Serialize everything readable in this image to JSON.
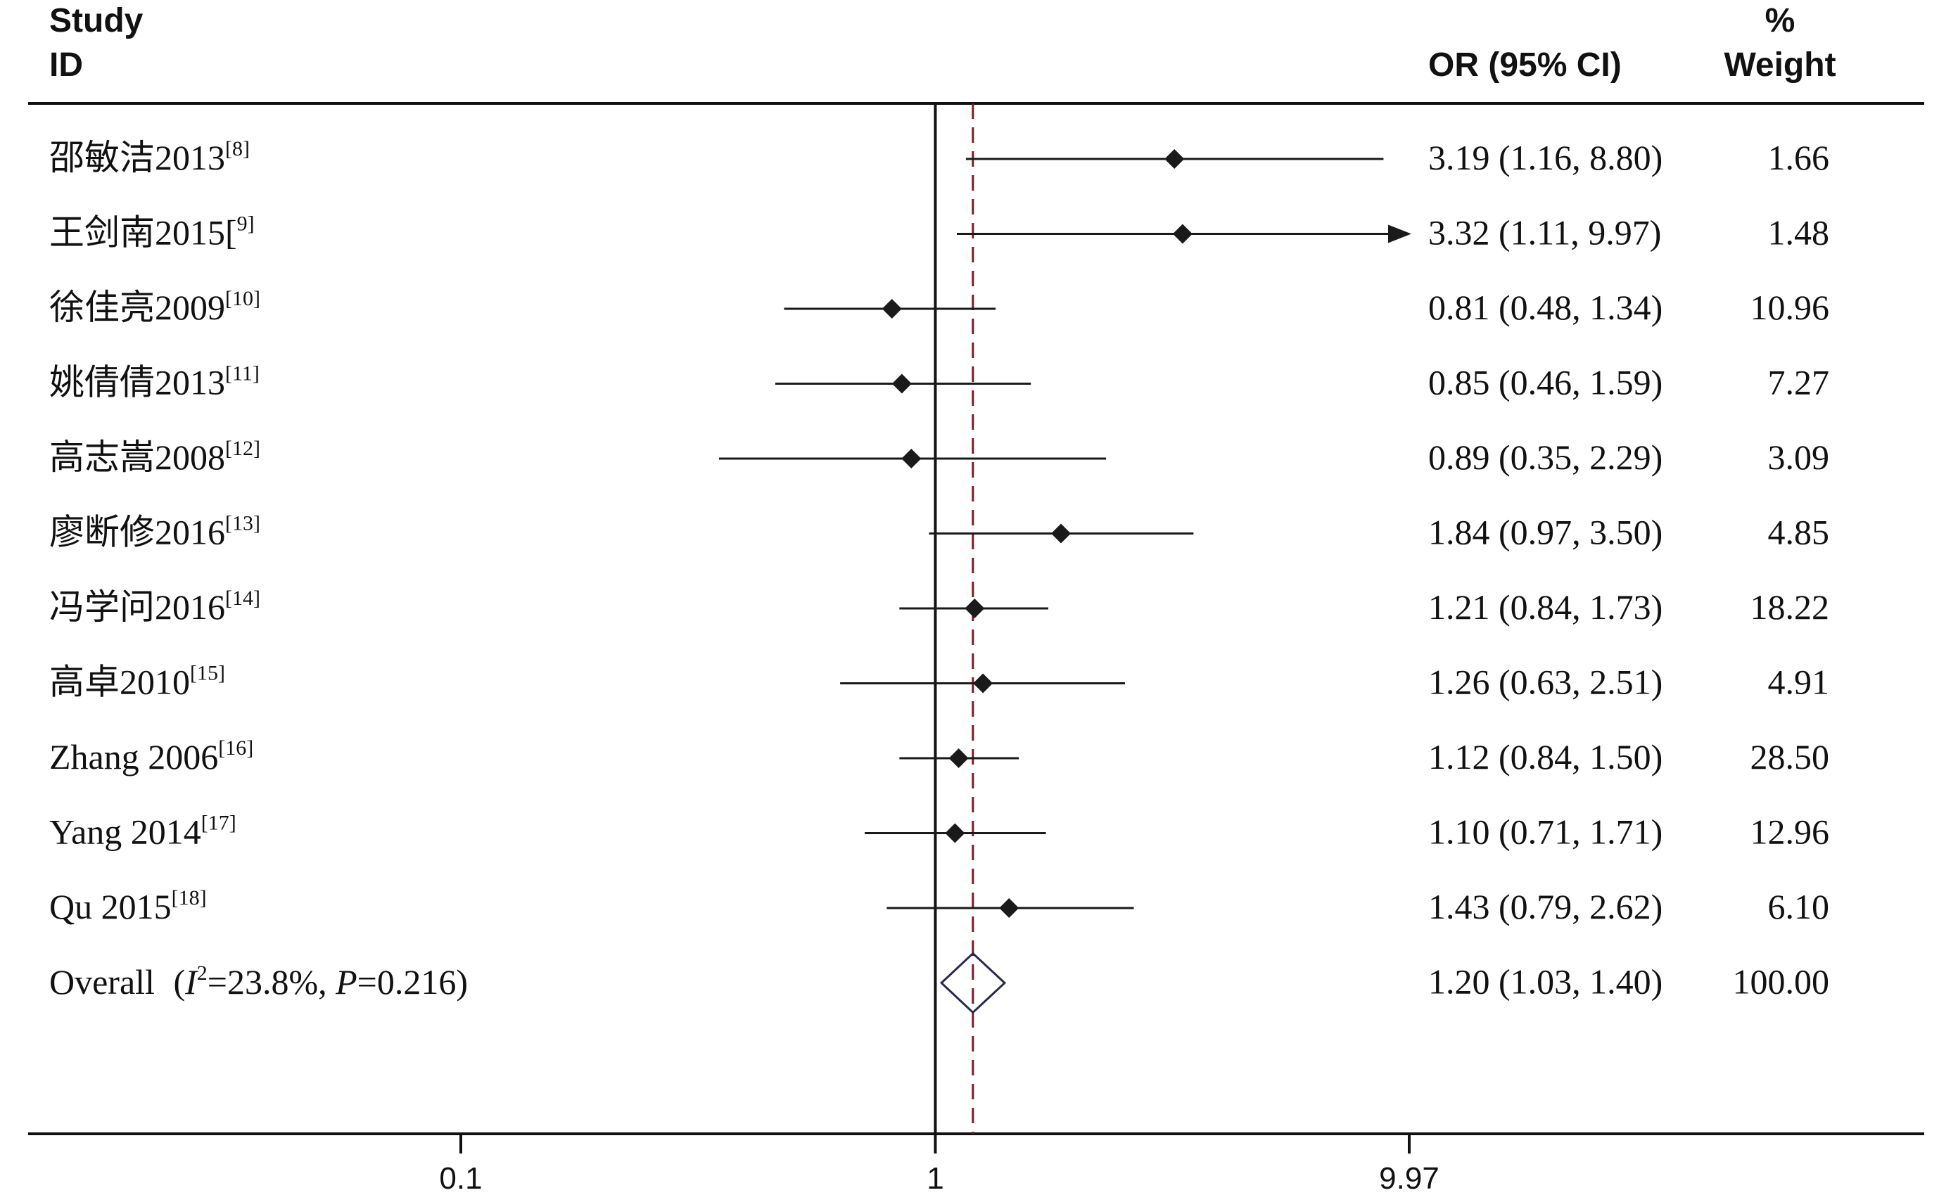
{
  "header": {
    "study_line1": "Study",
    "study_line2": "ID",
    "or_label": "OR (95% CI)",
    "weight_line1": "%",
    "weight_line2": "Weight"
  },
  "overall_label": {
    "prefix": "Overall",
    "i": "I",
    "sup": "2",
    "i_value": "=23.8%, ",
    "p": "P",
    "p_value": "=0.216)"
  },
  "chart_data": {
    "type": "forest",
    "x_scale": "log",
    "xlim": [
      0.1,
      9.97
    ],
    "x_ticks": [
      {
        "value": 0.1,
        "label": "0.1"
      },
      {
        "value": 1,
        "label": "1"
      },
      {
        "value": 9.97,
        "label": "9.97"
      }
    ],
    "null_line": 1,
    "pooled_line": 1.2,
    "studies": [
      {
        "label": "邵敏洁2013",
        "ref": "[8]",
        "or": 3.19,
        "lower": 1.16,
        "upper": 8.8,
        "ci_text": "3.19 (1.16, 8.80)",
        "weight": "1.66",
        "arrow": false
      },
      {
        "label": "王剑南2015[",
        "ref": "9]",
        "or": 3.32,
        "lower": 1.11,
        "upper": 9.97,
        "ci_text": "3.32 (1.11, 9.97)",
        "weight": "1.48",
        "arrow": true
      },
      {
        "label": "徐佳亮2009",
        "ref": "[10]",
        "or": 0.81,
        "lower": 0.48,
        "upper": 1.34,
        "ci_text": "0.81 (0.48, 1.34)",
        "weight": "10.96",
        "arrow": false
      },
      {
        "label": "姚倩倩2013",
        "ref": "[11]",
        "or": 0.85,
        "lower": 0.46,
        "upper": 1.59,
        "ci_text": "0.85 (0.46, 1.59)",
        "weight": "7.27",
        "arrow": false
      },
      {
        "label": "高志嵩2008",
        "ref": "[12]",
        "or": 0.89,
        "lower": 0.35,
        "upper": 2.29,
        "ci_text": "0.89 (0.35, 2.29)",
        "weight": "3.09",
        "arrow": false
      },
      {
        "label": "廖断修2016",
        "ref": "[13]",
        "or": 1.84,
        "lower": 0.97,
        "upper": 3.5,
        "ci_text": "1.84 (0.97, 3.50)",
        "weight": "4.85",
        "arrow": false
      },
      {
        "label": "冯学问2016",
        "ref": "[14]",
        "or": 1.21,
        "lower": 0.84,
        "upper": 1.73,
        "ci_text": "1.21 (0.84, 1.73)",
        "weight": "18.22",
        "arrow": false
      },
      {
        "label": "高卓2010",
        "ref": "[15]",
        "or": 1.26,
        "lower": 0.63,
        "upper": 2.51,
        "ci_text": "1.26 (0.63, 2.51)",
        "weight": "4.91",
        "arrow": false
      },
      {
        "label": "Zhang 2006",
        "ref": "[16]",
        "or": 1.12,
        "lower": 0.84,
        "upper": 1.5,
        "ci_text": "1.12 (0.84, 1.50)",
        "weight": "28.50",
        "arrow": false
      },
      {
        "label": "Yang 2014",
        "ref": "[17]",
        "or": 1.1,
        "lower": 0.71,
        "upper": 1.71,
        "ci_text": "1.10 (0.71, 1.71)",
        "weight": "12.96",
        "arrow": false
      },
      {
        "label": "Qu 2015",
        "ref": "[18]",
        "or": 1.43,
        "lower": 0.79,
        "upper": 2.62,
        "ci_text": "1.43 (0.79, 2.62)",
        "weight": "6.10",
        "arrow": false
      }
    ],
    "overall": {
      "or": 1.2,
      "lower": 1.03,
      "upper": 1.4,
      "ci_text": "1.20 (1.03, 1.40)",
      "weight": "100.00"
    },
    "colors": {
      "marks": "#1a1a1a",
      "pooled_line": "#7a1a2a",
      "diamond": "#2a2a4a"
    }
  }
}
